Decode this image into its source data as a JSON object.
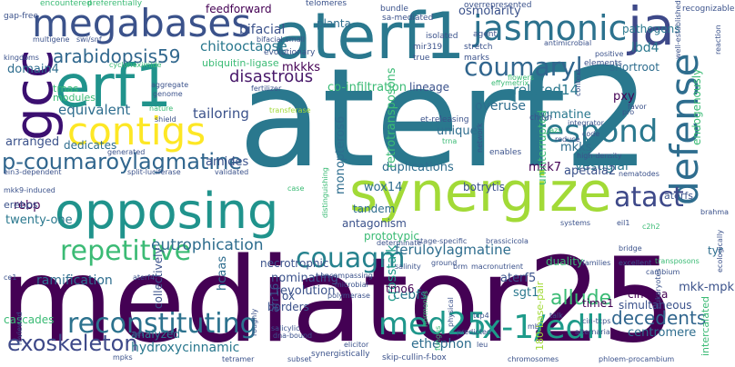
{
  "words": [
    {
      "text": "mediator25",
      "color": "#440154"
    },
    {
      "text": "aterf2",
      "color": "#2a788e"
    },
    {
      "text": "aterf1",
      "color": "#2a788e"
    },
    {
      "text": "synergize",
      "color": "#a2da37"
    },
    {
      "text": "opposing",
      "color": "#20938c"
    },
    {
      "text": "erf1",
      "color": "#20938c"
    },
    {
      "text": "megabases",
      "color": "#3b528b"
    },
    {
      "text": "jasmonic",
      "color": "#2c728e"
    },
    {
      "text": "ja",
      "color": "#3e4989"
    },
    {
      "text": "gcc",
      "color": "#3b0f70"
    },
    {
      "text": "contigs",
      "color": "#fde725"
    },
    {
      "text": "defense",
      "color": "#2e6d8e"
    },
    {
      "text": "ix-1/edll",
      "color": "#1e9b8a"
    },
    {
      "text": "reconstituting",
      "color": "#2c728e"
    },
    {
      "text": "med25",
      "color": "#1f978b"
    },
    {
      "text": "repetitive",
      "color": "#3bbb75"
    },
    {
      "text": "respond",
      "color": "#2a788e"
    },
    {
      "text": "couagm",
      "color": "#26828e"
    },
    {
      "text": "coumaryl",
      "color": "#31668e"
    },
    {
      "text": "p-coumaroylagmatine",
      "color": "#31668e"
    },
    {
      "text": "arabidopsis59",
      "color": "#30678d"
    },
    {
      "text": "atact",
      "color": "#3e4989"
    },
    {
      "text": "disastrous",
      "color": "#48186a"
    },
    {
      "text": "eutrophication",
      "color": "#2e6d8e"
    },
    {
      "text": "exoskeleton",
      "color": "#3e4989"
    },
    {
      "text": "decedents",
      "color": "#31668e"
    },
    {
      "text": "allude",
      "color": "#3bbb75"
    },
    {
      "text": "chitooctaose",
      "color": "#2a788e"
    },
    {
      "text": "equivalent",
      "color": "#2e6d8e"
    },
    {
      "text": "tailoring",
      "color": "#3b528b"
    },
    {
      "text": "bifacial",
      "color": "#3b528b"
    },
    {
      "text": "related14",
      "color": "#2a788e"
    },
    {
      "text": "overuse",
      "color": "#2e6d8e"
    },
    {
      "text": "lbd4",
      "color": "#2a788e"
    },
    {
      "text": "pxy",
      "color": "#440154"
    },
    {
      "text": "mkkks",
      "color": "#440154"
    },
    {
      "text": "feruloylagmatine",
      "color": "#2e6d8e"
    },
    {
      "text": "hydroxycinnamic",
      "color": "#2a788e"
    },
    {
      "text": "ethephon",
      "color": "#2e6d8e"
    },
    {
      "text": "ramification",
      "color": "#2e6d8e"
    },
    {
      "text": "ubiquitin-ligase",
      "color": "#3bbb75"
    },
    {
      "text": "duplications",
      "color": "#2e6d8e"
    },
    {
      "text": "vestigial",
      "color": "#2a788e"
    },
    {
      "text": "agmatine",
      "color": "#2a788e"
    },
    {
      "text": "mkk7",
      "color": "#440154"
    },
    {
      "text": "apetala2",
      "color": "#3b528b"
    },
    {
      "text": "botrytis",
      "color": "#3b528b"
    },
    {
      "text": "wox14",
      "color": "#2e6d8e"
    },
    {
      "text": "domain4",
      "color": "#2e6d8e"
    },
    {
      "text": "amides",
      "color": "#3b528b"
    },
    {
      "text": "arranged",
      "color": "#3b528b"
    },
    {
      "text": "rebp",
      "color": "#440154"
    },
    {
      "text": "twenty-one",
      "color": "#2a788e"
    },
    {
      "text": "co-infiltration",
      "color": "#3bbb75"
    },
    {
      "text": "nominating",
      "color": "#3b528b"
    },
    {
      "text": "hcaas",
      "color": "#2e6d8e"
    },
    {
      "text": "revolution",
      "color": "#3b528b"
    },
    {
      "text": "cebfs",
      "color": "#2a788e"
    },
    {
      "text": "crosstalk",
      "color": "#1e9b8a"
    },
    {
      "text": "aterf5",
      "color": "#3b528b"
    },
    {
      "text": "sgt1",
      "color": "#2a788e"
    },
    {
      "text": "mkk-mpk",
      "color": "#3b528b"
    },
    {
      "text": "cinerea",
      "color": "#440154"
    },
    {
      "text": "centromere",
      "color": "#2e6d8e"
    },
    {
      "text": "simultaneous",
      "color": "#3b528b"
    },
    {
      "text": "time1",
      "color": "#440154"
    },
    {
      "text": "mkks",
      "color": "#2e6d8e"
    },
    {
      "text": "unique",
      "color": "#2e6d8e"
    },
    {
      "text": "shortroot",
      "color": "#2e6d8e"
    },
    {
      "text": "osmolarity",
      "color": "#3b528b"
    },
    {
      "text": "retrotransposons",
      "color": "#3bbb75"
    },
    {
      "text": "monopteros6",
      "color": "#2e6d8e"
    },
    {
      "text": "lineage",
      "color": "#3b528b"
    },
    {
      "text": "planta",
      "color": "#2e6d8e"
    },
    {
      "text": "feedforward",
      "color": "#440154"
    },
    {
      "text": "pathogens",
      "color": "#2a788e"
    },
    {
      "text": "analyzed",
      "color": "#2a788e"
    },
    {
      "text": "collectively",
      "color": "#3b528b"
    },
    {
      "text": "cascades",
      "color": "#3bbb75"
    },
    {
      "text": "tyr",
      "color": "#2e6d8e"
    },
    {
      "text": "duality",
      "color": "#3bbb75"
    },
    {
      "text": "necrotrophic",
      "color": "#3b528b"
    },
    {
      "text": "antagonism",
      "color": "#3b528b"
    },
    {
      "text": "prototypic",
      "color": "#3bbb75"
    },
    {
      "text": "tandem",
      "color": "#2e6d8e"
    },
    {
      "text": "modules",
      "color": "#3bbb75"
    },
    {
      "text": "trnas",
      "color": "#3bbb75"
    },
    {
      "text": "borders",
      "color": "#3b528b"
    },
    {
      "text": "erebps",
      "color": "#3b528b"
    },
    {
      "text": "dedicates",
      "color": "#2e6d8e"
    },
    {
      "text": "endogenously",
      "color": "#3bbb75"
    },
    {
      "text": "uninterrupted",
      "color": "#3bbb75"
    },
    {
      "text": "tmo6",
      "color": "#440154"
    },
    {
      "text": "aterfs",
      "color": "#3b528b"
    },
    {
      "text": "intercalated",
      "color": "#3bbb75"
    },
    {
      "text": "180-base-pair",
      "color": "#a2da37"
    },
    {
      "text": "ox",
      "color": "#3b528b"
    },
    {
      "text": "arr16",
      "color": "#3b528b"
    },
    {
      "text": "bifacial-small",
      "color": "#3b528b"
    },
    {
      "text": "sa-mediated",
      "color": "#3b528b"
    },
    {
      "text": "overrepresented",
      "color": "#3b528b"
    },
    {
      "text": "encountered",
      "color": "#3bbb75"
    },
    {
      "text": "preferentially",
      "color": "#3bbb75"
    },
    {
      "text": "telomeres",
      "color": "#3b528b"
    },
    {
      "text": "bundle",
      "color": "#3b528b"
    },
    {
      "text": "recognizable",
      "color": "#3b528b"
    },
    {
      "text": "gap-free",
      "color": "#3b528b"
    },
    {
      "text": "multigene",
      "color": "#3b528b"
    },
    {
      "text": "swi/snf",
      "color": "#3b528b"
    },
    {
      "text": "kingdoms",
      "color": "#3b528b"
    },
    {
      "text": "cycloheximide",
      "color": "#3bbb75"
    },
    {
      "text": "evolutionary",
      "color": "#3b528b"
    },
    {
      "text": "isolated",
      "color": "#3b528b"
    },
    {
      "text": "mir319",
      "color": "#3b528b"
    },
    {
      "text": "stretch",
      "color": "#3b528b"
    },
    {
      "text": "agent",
      "color": "#3b528b"
    },
    {
      "text": "antimicrobial",
      "color": "#3b528b"
    },
    {
      "text": "well-established",
      "color": "#3b528b"
    },
    {
      "text": "elements",
      "color": "#3b528b"
    },
    {
      "text": "positive",
      "color": "#3b528b"
    },
    {
      "text": "marks",
      "color": "#3b528b"
    },
    {
      "text": "true",
      "color": "#3b528b"
    },
    {
      "text": "aggregate",
      "color": "#3b528b"
    },
    {
      "text": "genome",
      "color": "#3b528b"
    },
    {
      "text": "nature",
      "color": "#3bbb75"
    },
    {
      "text": "transferase",
      "color": "#a2da37"
    },
    {
      "text": "fertilizer",
      "color": "#3b528b"
    },
    {
      "text": "effymetrix",
      "color": "#3bbb75"
    },
    {
      "text": "integrator",
      "color": "#3b528b"
    },
    {
      "text": "favor",
      "color": "#3b528b"
    },
    {
      "text": "pro",
      "color": "#3b528b"
    },
    {
      "text": "chitin",
      "color": "#3b528b"
    },
    {
      "text": "et-releasing",
      "color": "#3b528b"
    },
    {
      "text": "jazs",
      "color": "#3bbb75"
    },
    {
      "text": "code",
      "color": "#3b528b"
    },
    {
      "text": "reduce",
      "color": "#3b528b"
    },
    {
      "text": "trna",
      "color": "#3bbb75"
    },
    {
      "text": "network",
      "color": "#3b528b"
    },
    {
      "text": "enables",
      "color": "#3b528b"
    },
    {
      "text": "high-density",
      "color": "#3b528b"
    },
    {
      "text": "nematodes",
      "color": "#3b528b"
    },
    {
      "text": "ein3-dependent",
      "color": "#3b528b"
    },
    {
      "text": "split-luciferase",
      "color": "#3b528b"
    },
    {
      "text": "generated",
      "color": "#3b528b"
    },
    {
      "text": "validated",
      "color": "#3b528b"
    },
    {
      "text": "mkk9-induced",
      "color": "#3b528b"
    },
    {
      "text": "case",
      "color": "#3bbb75"
    },
    {
      "text": "distinguishing",
      "color": "#3bbb75"
    },
    {
      "text": "systems",
      "color": "#3b528b"
    },
    {
      "text": "eil1",
      "color": "#3b528b"
    },
    {
      "text": "c2h2",
      "color": "#3bbb75"
    },
    {
      "text": "brahma",
      "color": "#3b528b"
    },
    {
      "text": "bridge",
      "color": "#3b528b"
    },
    {
      "text": "families",
      "color": "#3b528b"
    },
    {
      "text": "excellent",
      "color": "#3b528b"
    },
    {
      "text": "transposons",
      "color": "#3bbb75"
    },
    {
      "text": "cambium",
      "color": "#3b528b"
    },
    {
      "text": "ecologically",
      "color": "#3b528b"
    },
    {
      "text": "stage-specific",
      "color": "#3b528b"
    },
    {
      "text": "brassicicola",
      "color": "#3b528b"
    },
    {
      "text": "determinate",
      "color": "#3b528b"
    },
    {
      "text": "ground",
      "color": "#3b528b"
    },
    {
      "text": "salinity",
      "color": "#3b528b"
    },
    {
      "text": "brm",
      "color": "#3b528b"
    },
    {
      "text": "macronutrient",
      "color": "#3b528b"
    },
    {
      "text": "ce1",
      "color": "#3b528b"
    },
    {
      "text": "aterf4",
      "color": "#3b528b"
    },
    {
      "text": "encompassing",
      "color": "#3b528b"
    },
    {
      "text": "microbial",
      "color": "#3b528b"
    },
    {
      "text": "polymerase",
      "color": "#3b528b"
    },
    {
      "text": "eukaryotes",
      "color": "#3b528b"
    },
    {
      "text": "salicylic",
      "color": "#3b528b"
    },
    {
      "text": "dna-bound",
      "color": "#3b528b"
    },
    {
      "text": "roughly",
      "color": "#3b528b"
    },
    {
      "text": "tcp4",
      "color": "#3b528b"
    },
    {
      "text": "physical",
      "color": "#3b528b"
    },
    {
      "text": "hormones",
      "color": "#3bbb75"
    },
    {
      "text": "predicted",
      "color": "#3b528b"
    },
    {
      "text": "talk",
      "color": "#3b528b"
    },
    {
      "text": "cin-tcps",
      "color": "#3b528b"
    },
    {
      "text": "alternaria",
      "color": "#3b528b"
    },
    {
      "text": "mb",
      "color": "#3b528b"
    },
    {
      "text": "leu",
      "color": "#3b528b"
    },
    {
      "text": "elicitor",
      "color": "#3b528b"
    },
    {
      "text": "ser",
      "color": "#3b528b"
    },
    {
      "text": "mpks",
      "color": "#3b528b"
    },
    {
      "text": "tetramer",
      "color": "#3b528b"
    },
    {
      "text": "subset",
      "color": "#3b528b"
    },
    {
      "text": "synergistically",
      "color": "#3b528b"
    },
    {
      "text": "skip-cullin-f-box",
      "color": "#3b528b"
    },
    {
      "text": "chromosomes",
      "color": "#3b528b"
    },
    {
      "text": "phloem-procambium",
      "color": "#3b528b"
    },
    {
      "text": "reviewed",
      "color": "#3b528b"
    },
    {
      "text": "fungus",
      "color": "#3bbb75"
    },
    {
      "text": "reaction",
      "color": "#3b528b"
    },
    {
      "text": "context",
      "color": "#3b528b"
    },
    {
      "text": "flowers",
      "color": "#3bbb75"
    },
    {
      "text": "shield",
      "color": "#3b528b"
    }
  ]
}
